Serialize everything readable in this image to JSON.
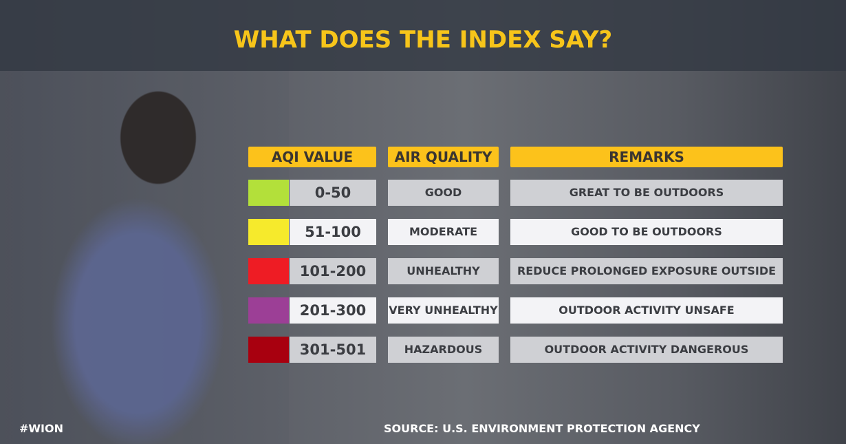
{
  "title": "WHAT DOES THE INDEX SAY?",
  "headers": {
    "aqi": "AQI VALUE",
    "quality": "AIR QUALITY",
    "remarks": "REMARKS"
  },
  "rows": [
    {
      "color": "#b3e03a",
      "range": "0-50",
      "quality": "GOOD",
      "remark": "GREAT TO BE OUTDOORS"
    },
    {
      "color": "#f6ea2c",
      "range": "51-100",
      "quality": "MODERATE",
      "remark": "GOOD TO BE OUTDOORS"
    },
    {
      "color": "#ee1c24",
      "range": "101-200",
      "quality": "UNHEALTHY",
      "remark": "REDUCE PROLONGED EXPOSURE OUTSIDE"
    },
    {
      "color": "#9c3f96",
      "range": "201-300",
      "quality": "VERY UNHEALTHY",
      "remark": "OUTDOOR ACTIVITY UNSAFE"
    },
    {
      "color": "#a8000f",
      "range": "301-501",
      "quality": "HAZARDOUS",
      "remark": "OUTDOOR ACTIVITY DANGEROUS"
    }
  ],
  "footer": {
    "hashtag": "#WION",
    "source": "SOURCE: U.S. ENVIRONMENT PROTECTION AGENCY"
  }
}
